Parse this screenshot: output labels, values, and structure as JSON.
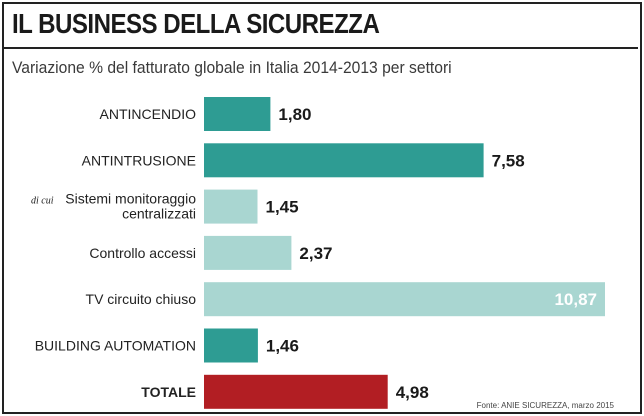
{
  "chart_data": {
    "type": "bar",
    "orientation": "horizontal",
    "title": "IL BUSINESS DELLA SICUREZZA",
    "subtitle": "Variazione % del fatturato globale in Italia 2014-2013 per settori",
    "categories": [
      {
        "prefix": "",
        "label": [
          "ANTINCENDIO"
        ],
        "value_label": "1,80",
        "color": "#2e9c93",
        "bold": false
      },
      {
        "prefix": "",
        "label": [
          "ANTINTRUSIONE"
        ],
        "value_label": "7,58",
        "color": "#2e9c93",
        "bold": false
      },
      {
        "prefix": "di cui",
        "label": [
          "Sistemi monitoraggio",
          "centralizzati"
        ],
        "value_label": "1,45",
        "color": "#a9d6d1",
        "bold": false
      },
      {
        "prefix": "",
        "label": [
          "Controllo accessi"
        ],
        "value_label": "2,37",
        "color": "#a9d6d1",
        "bold": false
      },
      {
        "prefix": "",
        "label": [
          "TV circuito chiuso"
        ],
        "value_label": "10,87",
        "color": "#a9d6d1",
        "bold": false
      },
      {
        "prefix": "",
        "label": [
          "BUILDING AUTOMATION"
        ],
        "value_label": "1,46",
        "color": "#2e9c93",
        "bold": false
      },
      {
        "prefix": "",
        "label": [
          "TOTALE"
        ],
        "value_label": "4,98",
        "color": "#b21e23",
        "bold": true
      }
    ],
    "values": [
      1.8,
      7.58,
      1.45,
      2.37,
      10.87,
      1.46,
      4.98
    ],
    "xlim": [
      0,
      10.87
    ],
    "source": "Fonte: ANIE SICUREZZA, marzo 2015"
  }
}
